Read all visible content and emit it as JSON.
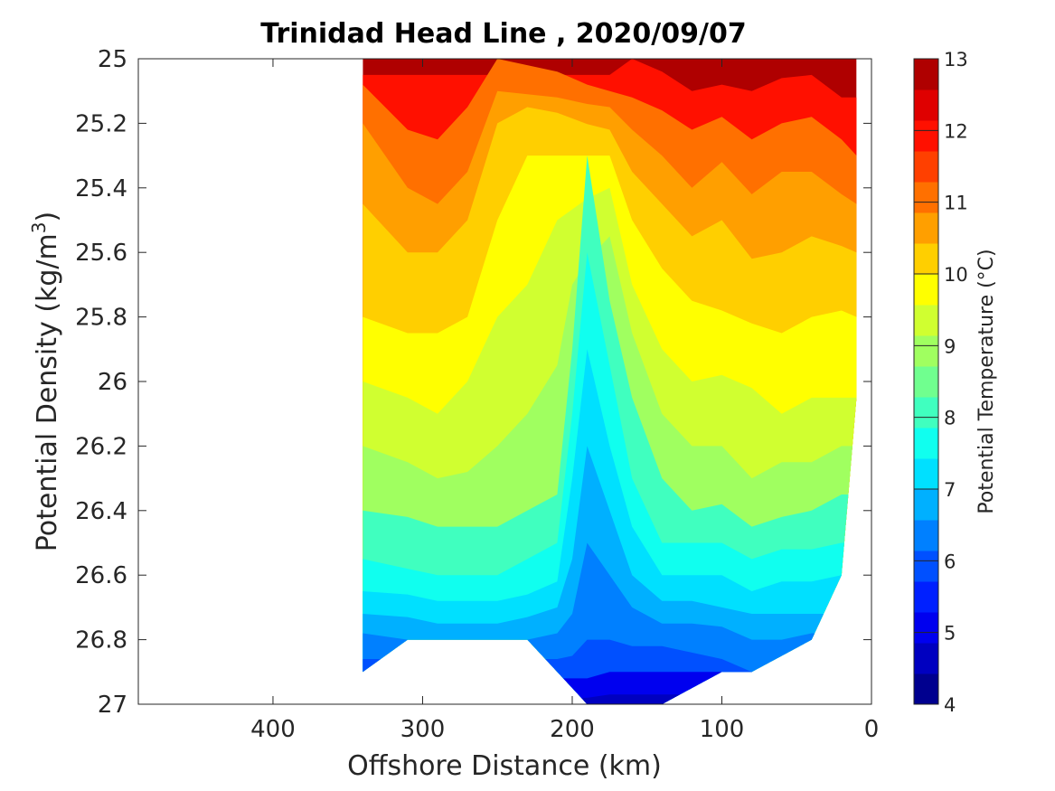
{
  "chart_data": {
    "type": "heatmap",
    "subtype": "filled-contour section",
    "title": "Trinidad Head Line , 2020/09/07",
    "xlabel": "Offshore Distance (km)",
    "ylabel": "Potential Density (kg/m3)",
    "ylabel_main": "Potential Density (kg/m",
    "ylabel_sup": "3",
    "ylabel_tail": ")",
    "xlim": [
      490,
      0
    ],
    "x_reversed": true,
    "x_ticks": [
      400,
      300,
      200,
      100,
      0
    ],
    "x_tick_labels": [
      "400",
      "300",
      "200",
      "100",
      "0"
    ],
    "ylim": [
      25,
      27
    ],
    "y_reversed": true,
    "y_ticks": [
      25,
      25.2,
      25.4,
      25.6,
      25.8,
      26,
      26.2,
      26.4,
      26.6,
      26.8,
      27
    ],
    "y_tick_labels": [
      "25",
      "25.2",
      "25.4",
      "25.6",
      "25.8",
      "26",
      "26.2",
      "26.4",
      "26.6",
      "26.8",
      "27"
    ],
    "grid": false,
    "colorbar": {
      "label": "Potential Temperature (°C)",
      "range": [
        4,
        13
      ],
      "ticks": [
        4,
        5,
        6,
        7,
        8,
        9,
        10,
        11,
        12,
        13
      ],
      "tick_labels": [
        "4",
        "5",
        "6",
        "7",
        "8",
        "9",
        "10",
        "11",
        "12",
        "13"
      ],
      "levels": [
        4,
        4.5,
        5,
        5.5,
        6,
        6.5,
        7,
        7.5,
        8,
        8.5,
        9,
        9.5,
        10,
        10.5,
        11,
        11.5,
        12,
        12.5,
        13
      ],
      "colors": [
        "#00008f",
        "#0000c0",
        "#0000ef",
        "#0020ff",
        "#0050ff",
        "#0080ff",
        "#00b0ff",
        "#00e0ff",
        "#10ffef",
        "#40ffbf",
        "#70ff8f",
        "#a0ff60",
        "#d0ff30",
        "#ffff00",
        "#ffcf00",
        "#ff9f00",
        "#ff7000",
        "#ff4000",
        "#ff1000",
        "#df0000",
        "#af0000"
      ]
    },
    "section": {
      "x": [
        340,
        310,
        290,
        270,
        250,
        230,
        210,
        200,
        190,
        175,
        160,
        140,
        120,
        100,
        80,
        60,
        40,
        20,
        10
      ],
      "density_top": [
        25,
        25,
        25,
        25,
        25,
        25,
        25,
        25,
        25,
        25,
        25,
        25,
        25,
        25,
        25,
        25,
        25,
        25,
        25
      ],
      "density_bottom": [
        26.9,
        26.8,
        26.8,
        26.8,
        26.8,
        26.8,
        26.9,
        26.95,
        27,
        27,
        27,
        27,
        26.95,
        26.9,
        26.9,
        26.85,
        26.8,
        26.6,
        26.05
      ],
      "isotherms": [
        {
          "temperature": 12,
          "density": [
            null,
            null,
            null,
            null,
            null,
            null,
            null,
            null,
            null,
            25.05,
            25.0,
            25.04,
            25.1,
            25.08,
            25.1,
            25.06,
            25.05,
            25.12,
            25.12
          ]
        },
        {
          "temperature": 11.5,
          "density": [
            25.08,
            25.22,
            25.25,
            25.15,
            25.0,
            null,
            null,
            null,
            null,
            25.1,
            25.12,
            25.16,
            25.22,
            25.18,
            25.25,
            25.2,
            25.18,
            25.25,
            25.3
          ]
        },
        {
          "temperature": 11,
          "density": [
            25.2,
            25.4,
            25.45,
            25.35,
            25.1,
            null,
            null,
            null,
            null,
            25.15,
            25.22,
            25.3,
            25.4,
            25.32,
            25.42,
            25.35,
            25.35,
            25.42,
            25.45
          ]
        },
        {
          "temperature": 10.5,
          "density": [
            25.45,
            25.6,
            25.6,
            25.5,
            25.2,
            25.15,
            null,
            null,
            null,
            25.22,
            25.35,
            25.45,
            25.55,
            25.5,
            25.62,
            25.6,
            25.55,
            25.58,
            25.6
          ]
        },
        {
          "temperature": 10,
          "density": [
            25.8,
            25.85,
            25.85,
            25.8,
            25.5,
            25.3,
            null,
            null,
            null,
            25.3,
            25.5,
            25.65,
            25.75,
            25.78,
            25.82,
            25.85,
            25.8,
            25.78,
            25.8
          ]
        },
        {
          "temperature": 9.5,
          "density": [
            26.0,
            26.05,
            26.1,
            26.0,
            25.8,
            25.7,
            25.5,
            null,
            null,
            25.4,
            25.7,
            25.9,
            26.0,
            25.98,
            26.02,
            26.1,
            26.05,
            26.05,
            null
          ]
        },
        {
          "temperature": 9,
          "density": [
            26.2,
            26.25,
            26.3,
            26.28,
            26.2,
            26.1,
            25.95,
            25.7,
            null,
            25.55,
            25.85,
            26.1,
            26.2,
            26.2,
            26.3,
            26.25,
            26.25,
            26.2,
            null
          ]
        },
        {
          "temperature": 8.5,
          "density": [
            26.4,
            26.42,
            26.45,
            26.45,
            26.45,
            26.4,
            26.35,
            25.9,
            25.3,
            25.75,
            26.05,
            26.3,
            26.4,
            26.38,
            26.45,
            26.42,
            26.4,
            26.35,
            null
          ]
        },
        {
          "temperature": 8,
          "density": [
            26.55,
            26.58,
            26.6,
            26.6,
            26.6,
            26.55,
            26.5,
            26.1,
            25.6,
            25.95,
            26.3,
            26.5,
            26.5,
            26.5,
            26.55,
            26.52,
            26.52,
            26.5,
            null
          ]
        },
        {
          "temperature": 7.5,
          "density": [
            26.65,
            26.66,
            26.68,
            26.68,
            26.68,
            26.66,
            26.62,
            26.3,
            25.9,
            26.2,
            26.45,
            26.6,
            26.6,
            26.6,
            26.65,
            26.62,
            26.62,
            26.6,
            null
          ]
        },
        {
          "temperature": 7,
          "density": [
            26.72,
            26.73,
            26.75,
            26.75,
            26.75,
            26.73,
            26.7,
            26.55,
            26.2,
            26.4,
            26.6,
            26.68,
            26.68,
            26.7,
            26.72,
            26.72,
            26.72,
            null,
            null
          ]
        },
        {
          "temperature": 6.5,
          "density": [
            26.78,
            26.8,
            26.8,
            26.8,
            26.8,
            26.8,
            26.78,
            26.72,
            26.5,
            26.6,
            26.7,
            26.75,
            26.75,
            26.76,
            26.8,
            26.8,
            26.78,
            null,
            null
          ]
        },
        {
          "temperature": 6,
          "density": [
            null,
            null,
            null,
            null,
            null,
            null,
            26.86,
            26.85,
            26.8,
            26.8,
            26.82,
            26.82,
            26.84,
            26.86,
            26.9,
            null,
            null,
            null,
            null
          ]
        },
        {
          "temperature": 5.5,
          "density": [
            null,
            null,
            null,
            null,
            null,
            null,
            null,
            null,
            26.92,
            26.9,
            26.9,
            26.9,
            null,
            null,
            null,
            null,
            null,
            null,
            null
          ]
        },
        {
          "temperature": 5,
          "density": [
            null,
            null,
            null,
            null,
            null,
            null,
            null,
            null,
            26.98,
            26.97,
            26.97,
            null,
            null,
            null,
            null,
            null,
            null,
            null,
            null
          ]
        }
      ]
    }
  }
}
